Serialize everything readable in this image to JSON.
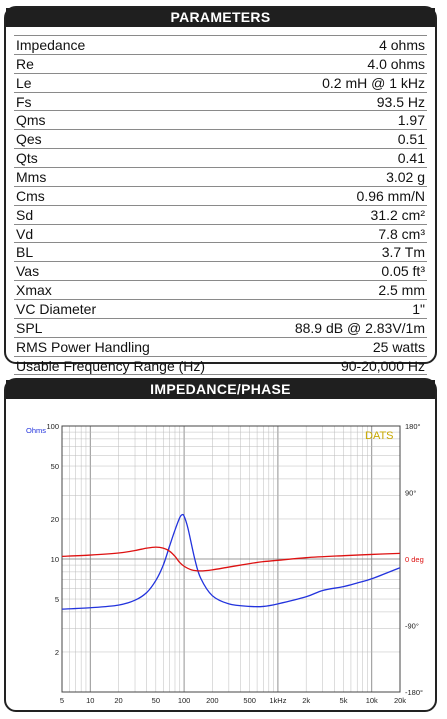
{
  "parameters": {
    "title": "PARAMETERS",
    "rows": [
      {
        "name": "Impedance",
        "value": "4 ohms"
      },
      {
        "name": "Re",
        "value": "4.0 ohms"
      },
      {
        "name": "Le",
        "value": "0.2 mH @ 1 kHz"
      },
      {
        "name": "Fs",
        "value": "93.5 Hz"
      },
      {
        "name": "Qms",
        "value": "1.97"
      },
      {
        "name": "Qes",
        "value": "0.51"
      },
      {
        "name": "Qts",
        "value": "0.41"
      },
      {
        "name": "Mms",
        "value": "3.02 g"
      },
      {
        "name": "Cms",
        "value": "0.96 mm/N"
      },
      {
        "name": "Sd",
        "value": "31.2 cm²"
      },
      {
        "name": "Vd",
        "value": "7.8 cm³"
      },
      {
        "name": "BL",
        "value": "3.7 Tm"
      },
      {
        "name": "Vas",
        "value": "0.05 ft³"
      },
      {
        "name": "Xmax",
        "value": "2.5 mm"
      },
      {
        "name": "VC Diameter",
        "value": "1\""
      },
      {
        "name": "SPL",
        "value": "88.9 dB @ 2.83V/1m"
      },
      {
        "name": "RMS Power Handling",
        "value": "25 watts"
      },
      {
        "name": "Usable Frequency Range (Hz)",
        "value": "90-20,000 Hz"
      }
    ]
  },
  "impedance": {
    "title": "IMPEDANCE/PHASE",
    "watermark": "DATS",
    "colors": {
      "impedance": "#2233dd",
      "phase": "#dd1111",
      "watermark": "#c8a800"
    }
  },
  "chart_data": {
    "type": "line",
    "x_scale": "log",
    "y_scale": "log",
    "xlim": [
      5,
      20000
    ],
    "ylim": [
      1,
      100
    ],
    "phase_lim": [
      -180,
      180
    ],
    "grid": true,
    "y_unit_label": "Ohms",
    "x_ticks": [
      {
        "value": 5,
        "label": "5"
      },
      {
        "value": 10,
        "label": "10"
      },
      {
        "value": 20,
        "label": "20"
      },
      {
        "value": 50,
        "label": "50"
      },
      {
        "value": 100,
        "label": "100"
      },
      {
        "value": 200,
        "label": "200"
      },
      {
        "value": 500,
        "label": "500"
      },
      {
        "value": 1000,
        "label": "1kHz"
      },
      {
        "value": 2000,
        "label": "2k"
      },
      {
        "value": 5000,
        "label": "5k"
      },
      {
        "value": 10000,
        "label": "10k"
      },
      {
        "value": 20000,
        "label": "20k"
      }
    ],
    "y_ticks": [
      {
        "value": 100,
        "label": "100"
      },
      {
        "value": 50,
        "label": "50"
      },
      {
        "value": 20,
        "label": "20"
      },
      {
        "value": 10,
        "label": "10"
      },
      {
        "value": 5,
        "label": "5"
      },
      {
        "value": 2,
        "label": "2"
      }
    ],
    "phase_ticks": [
      {
        "value": 180,
        "label": "180°"
      },
      {
        "value": 90,
        "label": "90°"
      },
      {
        "value": 0,
        "label": "0 deg"
      },
      {
        "value": -90,
        "label": "-90°"
      },
      {
        "value": -180,
        "label": "-180°"
      }
    ],
    "series": [
      {
        "axis": "impedance",
        "x": [
          5,
          10,
          20,
          30,
          40,
          50,
          60,
          70,
          80,
          90,
          95,
          100,
          110,
          130,
          150,
          200,
          300,
          500,
          700,
          1000,
          2000,
          3000,
          5000,
          7000,
          10000,
          20000
        ],
        "y": [
          4.2,
          4.3,
          4.5,
          4.9,
          5.6,
          6.9,
          9.0,
          12.5,
          16.5,
          20.5,
          21.5,
          21.0,
          17.0,
          10.0,
          7.2,
          5.3,
          4.6,
          4.4,
          4.4,
          4.6,
          5.2,
          5.8,
          6.2,
          6.6,
          7.1,
          8.6
        ]
      },
      {
        "axis": "phase",
        "x": [
          5,
          10,
          20,
          30,
          40,
          50,
          60,
          70,
          80,
          90,
          100,
          120,
          150,
          200,
          300,
          500,
          700,
          1000,
          2000,
          5000,
          10000,
          20000
        ],
        "y": [
          3.6,
          5.3,
          8.1,
          11.5,
          14.7,
          16.1,
          14.7,
          10.6,
          3.6,
          -4.9,
          -9.8,
          -14.7,
          -16.1,
          -14.7,
          -10.9,
          -6.2,
          -3.6,
          -1.8,
          1.8,
          4.5,
          6.2,
          7.6
        ]
      }
    ]
  }
}
